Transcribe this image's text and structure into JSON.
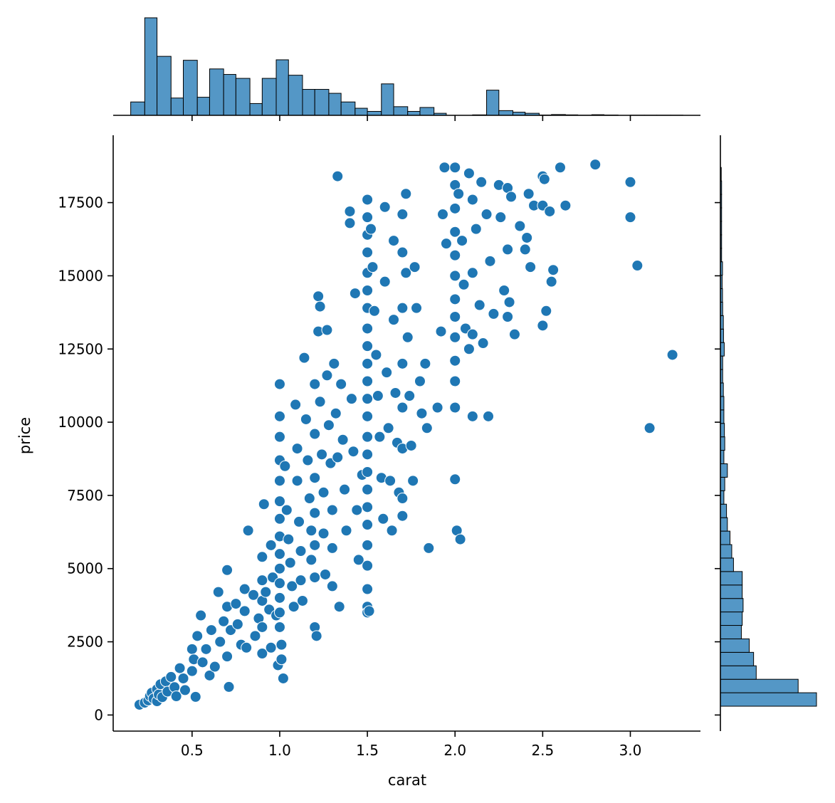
{
  "chart_data": {
    "type": "scatter",
    "xlabel": "carat",
    "ylabel": "price",
    "xlim": [
      0.05,
      3.4
    ],
    "ylim": [
      -550,
      19800
    ],
    "x_ticks": [
      0.5,
      1.0,
      1.5,
      2.0,
      2.5,
      3.0
    ],
    "x_tick_labels": [
      "0.5",
      "1.0",
      "1.5",
      "2.0",
      "2.5",
      "3.0"
    ],
    "y_ticks": [
      0,
      2500,
      5000,
      7500,
      10000,
      12500,
      15000,
      17500
    ],
    "y_tick_labels": [
      "0",
      "2500",
      "5000",
      "7500",
      "10000",
      "12500",
      "15000",
      "17500"
    ],
    "grid": false,
    "legend": "none",
    "colors": {
      "points": "#1f77b4",
      "histogram_fill": "#5497c6",
      "edge": "#ffffff",
      "hist_edge": "#000000"
    },
    "points": [
      [
        0.2,
        350
      ],
      [
        0.23,
        420
      ],
      [
        0.25,
        500
      ],
      [
        0.26,
        650
      ],
      [
        0.27,
        760
      ],
      [
        0.28,
        560
      ],
      [
        0.3,
        470
      ],
      [
        0.3,
        880
      ],
      [
        0.31,
        700
      ],
      [
        0.32,
        1050
      ],
      [
        0.33,
        610
      ],
      [
        0.35,
        1150
      ],
      [
        0.36,
        800
      ],
      [
        0.38,
        1300
      ],
      [
        0.4,
        950
      ],
      [
        0.41,
        640
      ],
      [
        0.43,
        1600
      ],
      [
        0.45,
        1250
      ],
      [
        0.46,
        850
      ],
      [
        0.5,
        2250
      ],
      [
        0.5,
        1500
      ],
      [
        0.51,
        1900
      ],
      [
        0.52,
        620
      ],
      [
        0.53,
        2700
      ],
      [
        0.55,
        3400
      ],
      [
        0.56,
        1800
      ],
      [
        0.58,
        2250
      ],
      [
        0.6,
        1350
      ],
      [
        0.61,
        2900
      ],
      [
        0.63,
        1650
      ],
      [
        0.65,
        4200
      ],
      [
        0.66,
        2500
      ],
      [
        0.68,
        3200
      ],
      [
        0.7,
        4950
      ],
      [
        0.7,
        3700
      ],
      [
        0.7,
        2000
      ],
      [
        0.71,
        960
      ],
      [
        0.72,
        2900
      ],
      [
        0.75,
        3800
      ],
      [
        0.76,
        3100
      ],
      [
        0.78,
        2400
      ],
      [
        0.8,
        4300
      ],
      [
        0.8,
        3550
      ],
      [
        0.81,
        2300
      ],
      [
        0.82,
        6300
      ],
      [
        0.85,
        4100
      ],
      [
        0.86,
        2700
      ],
      [
        0.88,
        3300
      ],
      [
        0.9,
        5400
      ],
      [
        0.9,
        4600
      ],
      [
        0.9,
        3900
      ],
      [
        0.9,
        3000
      ],
      [
        0.9,
        2100
      ],
      [
        0.91,
        7200
      ],
      [
        0.92,
        4200
      ],
      [
        0.94,
        3600
      ],
      [
        0.95,
        5800
      ],
      [
        0.95,
        2300
      ],
      [
        0.96,
        4700
      ],
      [
        0.98,
        3400
      ],
      [
        0.99,
        1700
      ],
      [
        1.0,
        11300
      ],
      [
        1.0,
        10200
      ],
      [
        1.0,
        9500
      ],
      [
        1.0,
        8700
      ],
      [
        1.0,
        8000
      ],
      [
        1.0,
        7300
      ],
      [
        1.0,
        6700
      ],
      [
        1.0,
        6100
      ],
      [
        1.0,
        5500
      ],
      [
        1.0,
        5000
      ],
      [
        1.0,
        4500
      ],
      [
        1.0,
        4000
      ],
      [
        1.0,
        3500
      ],
      [
        1.0,
        3000
      ],
      [
        1.01,
        2400
      ],
      [
        1.01,
        1900
      ],
      [
        1.02,
        1250
      ],
      [
        1.03,
        8500
      ],
      [
        1.04,
        7000
      ],
      [
        1.05,
        6000
      ],
      [
        1.06,
        5200
      ],
      [
        1.07,
        4400
      ],
      [
        1.08,
        3700
      ],
      [
        1.09,
        10600
      ],
      [
        1.1,
        9100
      ],
      [
        1.1,
        8000
      ],
      [
        1.11,
        6600
      ],
      [
        1.12,
        5600
      ],
      [
        1.12,
        4600
      ],
      [
        1.13,
        3900
      ],
      [
        1.14,
        12200
      ],
      [
        1.15,
        10100
      ],
      [
        1.16,
        8700
      ],
      [
        1.17,
        7400
      ],
      [
        1.18,
        6300
      ],
      [
        1.18,
        5300
      ],
      [
        1.2,
        11300
      ],
      [
        1.2,
        9600
      ],
      [
        1.2,
        8100
      ],
      [
        1.2,
        6900
      ],
      [
        1.2,
        5800
      ],
      [
        1.2,
        4700
      ],
      [
        1.2,
        3000
      ],
      [
        1.21,
        2700
      ],
      [
        1.22,
        14300
      ],
      [
        1.22,
        13100
      ],
      [
        1.23,
        13950
      ],
      [
        1.23,
        10700
      ],
      [
        1.24,
        8900
      ],
      [
        1.25,
        7600
      ],
      [
        1.25,
        6200
      ],
      [
        1.26,
        4800
      ],
      [
        1.27,
        13150
      ],
      [
        1.27,
        11600
      ],
      [
        1.28,
        9900
      ],
      [
        1.29,
        8600
      ],
      [
        1.3,
        7000
      ],
      [
        1.3,
        5700
      ],
      [
        1.3,
        4400
      ],
      [
        1.31,
        12000
      ],
      [
        1.32,
        10300
      ],
      [
        1.33,
        8800
      ],
      [
        1.33,
        18400
      ],
      [
        1.34,
        3700
      ],
      [
        1.35,
        11300
      ],
      [
        1.36,
        9400
      ],
      [
        1.37,
        7700
      ],
      [
        1.38,
        6300
      ],
      [
        1.4,
        17200
      ],
      [
        1.4,
        16800
      ],
      [
        1.41,
        10800
      ],
      [
        1.42,
        9000
      ],
      [
        1.43,
        14400
      ],
      [
        1.44,
        7000
      ],
      [
        1.45,
        5300
      ],
      [
        1.47,
        8200
      ],
      [
        1.5,
        17600
      ],
      [
        1.5,
        17000
      ],
      [
        1.5,
        16400
      ],
      [
        1.5,
        15800
      ],
      [
        1.5,
        15100
      ],
      [
        1.5,
        14500
      ],
      [
        1.5,
        13900
      ],
      [
        1.5,
        13200
      ],
      [
        1.5,
        12600
      ],
      [
        1.5,
        12000
      ],
      [
        1.5,
        11400
      ],
      [
        1.5,
        10800
      ],
      [
        1.5,
        10200
      ],
      [
        1.5,
        9500
      ],
      [
        1.5,
        8900
      ],
      [
        1.5,
        8300
      ],
      [
        1.5,
        7700
      ],
      [
        1.5,
        7100
      ],
      [
        1.5,
        6500
      ],
      [
        1.5,
        5800
      ],
      [
        1.5,
        5100
      ],
      [
        1.5,
        4300
      ],
      [
        1.5,
        3700
      ],
      [
        1.5,
        3500
      ],
      [
        1.51,
        3550
      ],
      [
        1.52,
        16600
      ],
      [
        1.53,
        15300
      ],
      [
        1.54,
        13800
      ],
      [
        1.55,
        12300
      ],
      [
        1.56,
        10900
      ],
      [
        1.57,
        9500
      ],
      [
        1.58,
        8100
      ],
      [
        1.59,
        6700
      ],
      [
        1.6,
        17350
      ],
      [
        1.6,
        14800
      ],
      [
        1.61,
        11700
      ],
      [
        1.62,
        9800
      ],
      [
        1.63,
        8000
      ],
      [
        1.64,
        6300
      ],
      [
        1.65,
        16200
      ],
      [
        1.65,
        13500
      ],
      [
        1.66,
        11000
      ],
      [
        1.67,
        9300
      ],
      [
        1.68,
        7600
      ],
      [
        1.7,
        17100
      ],
      [
        1.7,
        15800
      ],
      [
        1.7,
        13900
      ],
      [
        1.7,
        12000
      ],
      [
        1.7,
        10500
      ],
      [
        1.7,
        9100
      ],
      [
        1.7,
        7400
      ],
      [
        1.7,
        6800
      ],
      [
        1.72,
        17800
      ],
      [
        1.72,
        15100
      ],
      [
        1.73,
        12900
      ],
      [
        1.74,
        10900
      ],
      [
        1.75,
        9200
      ],
      [
        1.76,
        8000
      ],
      [
        1.77,
        15300
      ],
      [
        1.78,
        13900
      ],
      [
        1.8,
        11400
      ],
      [
        1.81,
        10300
      ],
      [
        1.83,
        12000
      ],
      [
        1.84,
        9800
      ],
      [
        1.85,
        5700
      ],
      [
        1.9,
        10500
      ],
      [
        1.92,
        13100
      ],
      [
        1.93,
        17100
      ],
      [
        1.94,
        18700
      ],
      [
        1.95,
        16100
      ],
      [
        2.0,
        18700
      ],
      [
        2.0,
        18100
      ],
      [
        2.0,
        17300
      ],
      [
        2.0,
        16500
      ],
      [
        2.0,
        15700
      ],
      [
        2.0,
        15000
      ],
      [
        2.0,
        14200
      ],
      [
        2.0,
        13600
      ],
      [
        2.0,
        12900
      ],
      [
        2.0,
        12100
      ],
      [
        2.0,
        11400
      ],
      [
        2.0,
        10500
      ],
      [
        2.0,
        8050
      ],
      [
        2.01,
        6300
      ],
      [
        2.02,
        17800
      ],
      [
        2.03,
        6000
      ],
      [
        2.04,
        16200
      ],
      [
        2.05,
        14700
      ],
      [
        2.06,
        13200
      ],
      [
        2.08,
        18500
      ],
      [
        2.08,
        12500
      ],
      [
        2.1,
        17600
      ],
      [
        2.1,
        15100
      ],
      [
        2.1,
        13000
      ],
      [
        2.1,
        10200
      ],
      [
        2.12,
        16600
      ],
      [
        2.14,
        14000
      ],
      [
        2.15,
        18200
      ],
      [
        2.16,
        12700
      ],
      [
        2.18,
        17100
      ],
      [
        2.19,
        10200
      ],
      [
        2.2,
        15500
      ],
      [
        2.22,
        13700
      ],
      [
        2.25,
        18100
      ],
      [
        2.26,
        17000
      ],
      [
        2.28,
        14500
      ],
      [
        2.3,
        18000
      ],
      [
        2.3,
        15900
      ],
      [
        2.3,
        13600
      ],
      [
        2.31,
        14100
      ],
      [
        2.32,
        17700
      ],
      [
        2.34,
        13000
      ],
      [
        2.37,
        16700
      ],
      [
        2.4,
        15900
      ],
      [
        2.41,
        16300
      ],
      [
        2.42,
        17800
      ],
      [
        2.43,
        15300
      ],
      [
        2.45,
        17400
      ],
      [
        2.5,
        18400
      ],
      [
        2.5,
        17400
      ],
      [
        2.5,
        13300
      ],
      [
        2.51,
        18300
      ],
      [
        2.52,
        13800
      ],
      [
        2.54,
        17200
      ],
      [
        2.55,
        14800
      ],
      [
        2.56,
        15200
      ],
      [
        2.6,
        18700
      ],
      [
        2.63,
        17400
      ],
      [
        2.8,
        18800
      ],
      [
        3.0,
        18200
      ],
      [
        3.0,
        17000
      ],
      [
        3.04,
        15350
      ],
      [
        3.11,
        9800
      ],
      [
        3.24,
        12300
      ]
    ],
    "marginal_x": {
      "bin_edges": [
        0.15,
        0.23,
        0.3,
        0.38,
        0.45,
        0.53,
        0.6,
        0.68,
        0.75,
        0.83,
        0.9,
        0.98,
        1.05,
        1.13,
        1.2,
        1.28,
        1.35,
        1.43,
        1.5,
        1.58,
        1.65,
        1.73,
        1.8,
        1.88,
        1.95,
        2.03,
        2.1,
        2.18,
        2.25,
        2.33,
        2.4,
        2.48,
        2.55,
        2.63,
        2.7,
        2.78,
        2.85,
        2.93,
        3.0,
        3.08,
        3.15,
        3.23,
        3.3
      ],
      "counts": [
        85,
        620,
        375,
        110,
        350,
        115,
        295,
        260,
        235,
        75,
        235,
        353,
        255,
        165,
        165,
        140,
        85,
        45,
        25,
        200,
        55,
        25,
        50,
        13,
        0,
        0,
        3,
        160,
        30,
        20,
        13,
        2,
        5,
        3,
        1,
        4,
        2,
        0,
        1,
        1,
        1,
        1
      ]
    },
    "marginal_y": {
      "bin_edges": [
        300,
        760,
        1220,
        1680,
        2140,
        2600,
        3060,
        3520,
        3980,
        4440,
        4900,
        5360,
        5820,
        6280,
        6740,
        7200,
        7660,
        8120,
        8580,
        9040,
        9500,
        9960,
        10420,
        10880,
        11340,
        11800,
        12260,
        12720,
        13180,
        13640,
        14100,
        14560,
        15020,
        15480,
        15940,
        16400,
        16860,
        17320,
        17780,
        18240,
        18700
      ],
      "counts": [
        550,
        445,
        205,
        190,
        165,
        120,
        125,
        130,
        125,
        125,
        75,
        65,
        55,
        40,
        35,
        20,
        25,
        40,
        20,
        25,
        23,
        20,
        20,
        17,
        13,
        13,
        22,
        18,
        17,
        13,
        12,
        10,
        12,
        7,
        7,
        7,
        7,
        7,
        7,
        5
      ]
    }
  }
}
